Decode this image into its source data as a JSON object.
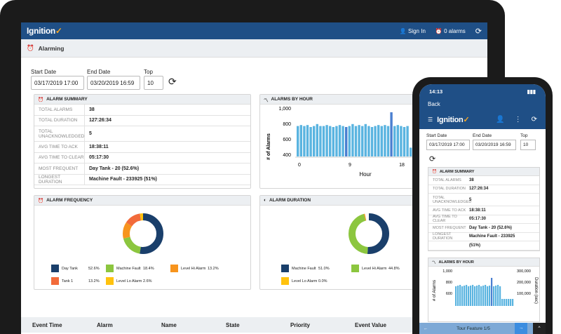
{
  "app": {
    "logo": "Ignition",
    "sign_in": "Sign In",
    "alarms": "0 alarms"
  },
  "page": {
    "title": "Alarming"
  },
  "filters": {
    "start_label": "Start Date",
    "start_value": "03/17/2019 17:00",
    "end_label": "End Date",
    "end_value": "03/20/2019 16:59",
    "top_label": "Top",
    "top_value": "10"
  },
  "summary": {
    "title": "ALARM SUMMARY",
    "rows": [
      {
        "k": "TOTAL ALARMS",
        "v": "38"
      },
      {
        "k": "TOTAL DURATION",
        "v": "127:26:34"
      },
      {
        "k": "TOTAL UNACKNOWLEDGED",
        "v": "5"
      },
      {
        "k": "AVG TIME TO ACK",
        "v": "18:38:11"
      },
      {
        "k": "AVG TIME TO CLEAR",
        "v": "05:17:30"
      },
      {
        "k": "MOST FREQUENT",
        "v": "Day Tank - 20 (52.6%)"
      },
      {
        "k": "LONGEST DURATION",
        "v": "Machine Fault - 233925 (51%)"
      }
    ]
  },
  "by_hour": {
    "title": "ALARMS BY HOUR",
    "ylabel": "# of Alarms",
    "xlabel": "Hour",
    "yticks": [
      "1,000",
      "800",
      "600",
      "400"
    ],
    "xticks": [
      "0",
      "9",
      "18"
    ]
  },
  "frequency": {
    "title": "ALARM FREQUENCY",
    "items": [
      {
        "name": "Day Tank",
        "pct": "52.6%",
        "color": "#1a3f6b"
      },
      {
        "name": "Machine Fault",
        "pct": "18.4%",
        "color": "#8cc63f"
      },
      {
        "name": "Level Hi Alarm",
        "pct": "13.2%",
        "color": "#f7941d"
      },
      {
        "name": "Tank 1",
        "pct": "13.2%",
        "color": "#f26b3a"
      },
      {
        "name": "Level Lo Alarm",
        "pct": "2.6%",
        "color": "#ffc20e"
      }
    ]
  },
  "duration": {
    "title": "ALARM DURATION",
    "items": [
      {
        "name": "Machine Fault",
        "pct": "51.0%",
        "color": "#1a3f6b"
      },
      {
        "name": "Level Hi Alarm",
        "pct": "44.8%",
        "color": "#8cc63f"
      },
      {
        "name": "Day Tank",
        "pct": "0.7%",
        "color": "#f7941d"
      },
      {
        "name": "Level Lo Alarm",
        "pct": "0.0%",
        "color": "#ffc20e"
      }
    ]
  },
  "table": {
    "columns": [
      "Event Time",
      "Alarm",
      "Name",
      "State",
      "Priority",
      "Event Value"
    ]
  },
  "phone": {
    "time": "14:13",
    "back": "Back",
    "logo": "Ignition",
    "start_label": "Start Date",
    "start_value": "03/17/2019 17:00",
    "end_label": "End Date",
    "end_value": "03/20/2019 16:59",
    "top_label": "Top",
    "top_value": "10",
    "summary_title": "ALARM SUMMARY",
    "rows": [
      {
        "k": "TOTAL ALARMS",
        "v": "38"
      },
      {
        "k": "TOTAL DURATION",
        "v": "127:26:34"
      },
      {
        "k": "TOTAL UNACKNOWLEDGED",
        "v": "5"
      },
      {
        "k": "AVG TIME TO ACK",
        "v": "18:38:11"
      },
      {
        "k": "AVG TIME TO CLEAR",
        "v": "05:17:30"
      },
      {
        "k": "MOST FREQUENT",
        "v": "Day Tank - 20 (52.6%)"
      },
      {
        "k": "LONGEST DURATION",
        "v": "Machine Fault - 233925"
      },
      {
        "k": "",
        "v": "(51%)"
      }
    ],
    "hour_title": "ALARMS BY HOUR",
    "hour_ylabel": "# of Alarms",
    "hour_yticks": [
      "1,000",
      "800",
      "600"
    ],
    "hour_y2label": "Duration (sec)",
    "hour_y2ticks": [
      "300,000",
      "200,000",
      "100,000"
    ],
    "tour": "Tour Feature 1/5"
  }
}
